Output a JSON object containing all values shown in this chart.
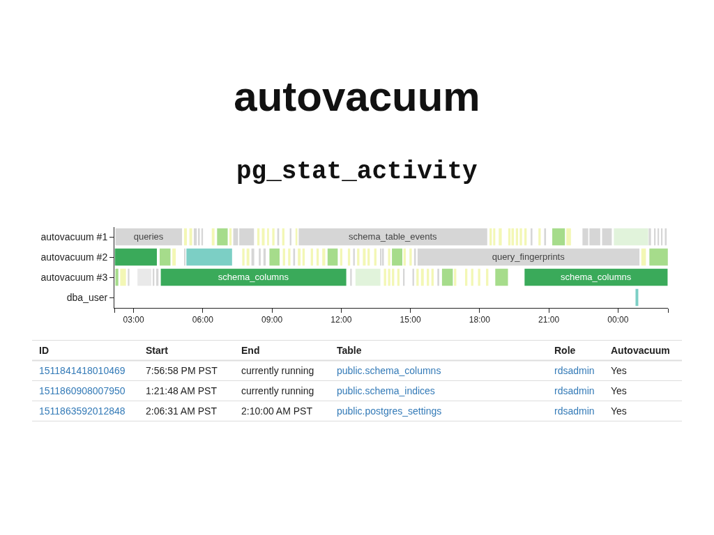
{
  "chart_data": {
    "type": "bar",
    "orientation": "horizontal",
    "title": "autovacuum",
    "subtitle": "pg_stat_activity",
    "categories": [
      "autovacuum #1",
      "autovacuum #2",
      "autovacuum #3",
      "dba_user"
    ],
    "xlim": [
      2.1667,
      26.1667
    ],
    "xticks": [
      {
        "value": 2.1667,
        "label": null
      },
      {
        "value": 3,
        "label": "03:00"
      },
      {
        "value": 6,
        "label": "06:00"
      },
      {
        "value": 9,
        "label": "09:00"
      },
      {
        "value": 12,
        "label": "12:00"
      },
      {
        "value": 15,
        "label": "15:00"
      },
      {
        "value": 18,
        "label": "18:00"
      },
      {
        "value": 21,
        "label": "21:00"
      },
      {
        "value": 24,
        "label": "00:00"
      },
      {
        "value": 26.1667,
        "label": null
      }
    ],
    "series": [
      {
        "color": "#d6d6d6",
        "base": [
          2.21,
          null,
          null,
          null
        ],
        "values": [
          2.89,
          null,
          null,
          null
        ],
        "value_labels": [
          "queries",
          null,
          null,
          null
        ]
      },
      {
        "color": "#f3f7b5",
        "base": [
          5.19,
          null,
          null,
          null
        ],
        "values": [
          0.12,
          null,
          null,
          null
        ]
      },
      {
        "color": "#f3f7b5",
        "base": [
          5.42,
          null,
          null,
          null
        ],
        "values": [
          0.12,
          null,
          null,
          null
        ]
      },
      {
        "color": "#d6d6d6",
        "base": [
          5.61,
          null,
          null,
          null
        ],
        "values": [
          0.13,
          null,
          null,
          null
        ]
      },
      {
        "color": "#d6d6d6",
        "base": [
          5.81,
          null,
          null,
          null
        ],
        "values": [
          0.06,
          null,
          null,
          null
        ]
      },
      {
        "color": "#d6d6d6",
        "base": [
          5.94,
          null,
          null,
          null
        ],
        "values": [
          0.07,
          null,
          null,
          null
        ]
      },
      {
        "color": "#f3f7b5",
        "base": [
          6.39,
          null,
          null,
          null
        ],
        "values": [
          0.12,
          null,
          null,
          null
        ]
      },
      {
        "color": "#a6dc8b",
        "base": [
          6.62,
          null,
          null,
          null
        ],
        "values": [
          0.46,
          null,
          null,
          null
        ]
      },
      {
        "color": "#f3f7b5",
        "base": [
          7.15,
          null,
          null,
          null
        ],
        "values": [
          0.1,
          null,
          null,
          null
        ]
      },
      {
        "color": "#d6d6d6",
        "base": [
          7.32,
          null,
          null,
          null
        ],
        "values": [
          0.21,
          null,
          null,
          null
        ]
      },
      {
        "color": "#d6d6d6",
        "base": [
          7.58,
          null,
          null,
          null
        ],
        "values": [
          0.64,
          null,
          null,
          null
        ]
      },
      {
        "color": "#f3f7b5",
        "base": [
          8.36,
          null,
          null,
          null
        ],
        "values": [
          0.1,
          null,
          null,
          null
        ]
      },
      {
        "color": "#f3f7b5",
        "base": [
          8.56,
          null,
          null,
          null
        ],
        "values": [
          0.12,
          null,
          null,
          null
        ]
      },
      {
        "color": "#f3f7b5",
        "base": [
          8.79,
          null,
          null,
          null
        ],
        "values": [
          0.08,
          null,
          null,
          null
        ]
      },
      {
        "color": "#f3f7b5",
        "base": [
          9.01,
          null,
          null,
          null
        ],
        "values": [
          0.1,
          null,
          null,
          null
        ]
      },
      {
        "color": "#d6d6d6",
        "base": [
          9.23,
          null,
          null,
          null
        ],
        "values": [
          0.08,
          null,
          null,
          null
        ]
      },
      {
        "color": "#f3f7b5",
        "base": [
          9.44,
          null,
          null,
          null
        ],
        "values": [
          0.1,
          null,
          null,
          null
        ]
      },
      {
        "color": "#d6d6d6",
        "base": [
          9.77,
          null,
          null,
          null
        ],
        "values": [
          0.07,
          null,
          null,
          null
        ]
      },
      {
        "color": "#f3f7b5",
        "base": [
          10.02,
          null,
          null,
          null
        ],
        "values": [
          0.08,
          null,
          null,
          null
        ]
      },
      {
        "color": "#d6d6d6",
        "base": [
          10.16,
          null,
          null,
          null
        ],
        "values": [
          8.17,
          null,
          null,
          null
        ],
        "value_labels": [
          "schema_table_events",
          null,
          null,
          null
        ]
      },
      {
        "color": "#f3f7b5",
        "base": [
          18.43,
          null,
          null,
          null
        ],
        "values": [
          0.1,
          null,
          null,
          null
        ]
      },
      {
        "color": "#f3f7b5",
        "base": [
          18.59,
          null,
          null,
          null
        ],
        "values": [
          0.09,
          null,
          null,
          null
        ]
      },
      {
        "color": "#f3f7b5",
        "base": [
          18.83,
          null,
          null,
          null
        ],
        "values": [
          0.13,
          null,
          null,
          null
        ]
      },
      {
        "color": "#f3f7b5",
        "base": [
          19.24,
          null,
          null,
          null
        ],
        "values": [
          0.1,
          null,
          null,
          null
        ]
      },
      {
        "color": "#f3f7b5",
        "base": [
          19.38,
          null,
          null,
          null
        ],
        "values": [
          0.11,
          null,
          null,
          null
        ]
      },
      {
        "color": "#f3f7b5",
        "base": [
          19.57,
          null,
          null,
          null
        ],
        "values": [
          0.1,
          null,
          null,
          null
        ]
      },
      {
        "color": "#f3f7b5",
        "base": [
          19.74,
          null,
          null,
          null
        ],
        "values": [
          0.1,
          null,
          null,
          null
        ]
      },
      {
        "color": "#f3f7b5",
        "base": [
          19.94,
          null,
          null,
          null
        ],
        "values": [
          0.1,
          null,
          null,
          null
        ]
      },
      {
        "color": "#d6d6d6",
        "base": [
          20.24,
          null,
          null,
          null
        ],
        "values": [
          0.05,
          null,
          null,
          null
        ]
      },
      {
        "color": "#f3f7b5",
        "base": [
          20.55,
          null,
          null,
          null
        ],
        "values": [
          0.1,
          null,
          null,
          null
        ]
      },
      {
        "color": "#d6d6d6",
        "base": [
          20.8,
          null,
          null,
          null
        ],
        "values": [
          0.08,
          null,
          null,
          null
        ]
      },
      {
        "color": "#a6dc8b",
        "base": [
          21.15,
          null,
          null,
          null
        ],
        "values": [
          0.55,
          null,
          null,
          null
        ]
      },
      {
        "color": "#f3f7b5",
        "base": [
          21.76,
          null,
          null,
          null
        ],
        "values": [
          0.2,
          null,
          null,
          null
        ]
      },
      {
        "color": "#d6d6d6",
        "base": [
          22.46,
          null,
          null,
          null
        ],
        "values": [
          0.25,
          null,
          null,
          null
        ]
      },
      {
        "color": "#d6d6d6",
        "base": [
          22.76,
          null,
          null,
          null
        ],
        "values": [
          0.47,
          null,
          null,
          null
        ]
      },
      {
        "color": "#d6d6d6",
        "base": [
          23.31,
          null,
          null,
          null
        ],
        "values": [
          0.42,
          null,
          null,
          null
        ]
      },
      {
        "color": "#e1f3db",
        "base": [
          23.82,
          null,
          null,
          null
        ],
        "values": [
          1.49,
          null,
          null,
          null
        ]
      },
      {
        "color": "#d6d6d6",
        "base": [
          25.33,
          null,
          null,
          null
        ],
        "values": [
          0.1,
          null,
          null,
          null
        ]
      },
      {
        "color": "#d6d6d6",
        "base": [
          25.58,
          null,
          null,
          null
        ],
        "values": [
          0.05,
          null,
          null,
          null
        ]
      },
      {
        "color": "#d6d6d6",
        "base": [
          25.73,
          null,
          null,
          null
        ],
        "values": [
          0.05,
          null,
          null,
          null
        ]
      },
      {
        "color": "#d6d6d6",
        "base": [
          25.88,
          null,
          null,
          null
        ],
        "values": [
          0.05,
          null,
          null,
          null
        ]
      },
      {
        "color": "#d6d6d6",
        "base": [
          26.03,
          null,
          null,
          null
        ],
        "values": [
          0.08,
          null,
          null,
          null
        ]
      },
      {
        "color": "#3aaa5a",
        "base": [
          null,
          2.19,
          null,
          null
        ],
        "values": [
          null,
          1.82,
          null,
          null
        ]
      },
      {
        "color": "#a6dc8b",
        "base": [
          null,
          4.13,
          null,
          null
        ],
        "values": [
          null,
          0.47,
          null,
          null
        ]
      },
      {
        "color": "#f3f7b5",
        "base": [
          null,
          4.68,
          null,
          null
        ],
        "values": [
          null,
          0.15,
          null,
          null
        ]
      },
      {
        "color": "#d6d6d6",
        "base": [
          null,
          5.21,
          null,
          null
        ],
        "values": [
          null,
          0.04,
          null,
          null
        ]
      },
      {
        "color": "#7ccfc5",
        "base": [
          null,
          5.29,
          null,
          null
        ],
        "values": [
          null,
          1.98,
          null,
          null
        ]
      },
      {
        "color": "#f3f7b5",
        "base": [
          null,
          7.71,
          null,
          null
        ],
        "values": [
          null,
          0.1,
          null,
          null
        ]
      },
      {
        "color": "#f3f7b5",
        "base": [
          null,
          7.9,
          null,
          null
        ],
        "values": [
          null,
          0.12,
          null,
          null
        ]
      },
      {
        "color": "#d6d6d6",
        "base": [
          null,
          8.11,
          null,
          null
        ],
        "values": [
          null,
          0.12,
          null,
          null
        ]
      },
      {
        "color": "#d6d6d6",
        "base": [
          null,
          8.43,
          null,
          null
        ],
        "values": [
          null,
          0.08,
          null,
          null
        ]
      },
      {
        "color": "#d6d6d6",
        "base": [
          null,
          8.63,
          null,
          null
        ],
        "values": [
          null,
          0.1,
          null,
          null
        ]
      },
      {
        "color": "#a6dc8b",
        "base": [
          null,
          8.89,
          null,
          null
        ],
        "values": [
          null,
          0.44,
          null,
          null
        ]
      },
      {
        "color": "#f3f7b5",
        "base": [
          null,
          9.47,
          null,
          null
        ],
        "values": [
          null,
          0.1,
          null,
          null
        ]
      },
      {
        "color": "#f3f7b5",
        "base": [
          null,
          9.7,
          null,
          null
        ],
        "values": [
          null,
          0.1,
          null,
          null
        ]
      },
      {
        "color": "#d6d6d6",
        "base": [
          null,
          9.92,
          null,
          null
        ],
        "values": [
          null,
          0.08,
          null,
          null
        ]
      },
      {
        "color": "#f3f7b5",
        "base": [
          null,
          10.12,
          null,
          null
        ],
        "values": [
          null,
          0.12,
          null,
          null
        ]
      },
      {
        "color": "#f3f7b5",
        "base": [
          null,
          10.32,
          null,
          null
        ],
        "values": [
          null,
          0.1,
          null,
          null
        ]
      },
      {
        "color": "#f3f7b5",
        "base": [
          null,
          10.68,
          null,
          null
        ],
        "values": [
          null,
          0.1,
          null,
          null
        ]
      },
      {
        "color": "#f3f7b5",
        "base": [
          null,
          10.93,
          null,
          null
        ],
        "values": [
          null,
          0.1,
          null,
          null
        ]
      },
      {
        "color": "#f3f7b5",
        "base": [
          null,
          11.18,
          null,
          null
        ],
        "values": [
          null,
          0.13,
          null,
          null
        ]
      },
      {
        "color": "#a6dc8b",
        "base": [
          null,
          11.41,
          null,
          null
        ],
        "values": [
          null,
          0.44,
          null,
          null
        ]
      },
      {
        "color": "#f3f7b5",
        "base": [
          null,
          11.95,
          null,
          null
        ],
        "values": [
          null,
          0.1,
          null,
          null
        ]
      },
      {
        "color": "#f3f7b5",
        "base": [
          null,
          12.29,
          null,
          null
        ],
        "values": [
          null,
          0.1,
          null,
          null
        ]
      },
      {
        "color": "#d6d6d6",
        "base": [
          null,
          12.52,
          null,
          null
        ],
        "values": [
          null,
          0.07,
          null,
          null
        ]
      },
      {
        "color": "#f3f7b5",
        "base": [
          null,
          12.69,
          null,
          null
        ],
        "values": [
          null,
          0.1,
          null,
          null
        ]
      },
      {
        "color": "#f3f7b5",
        "base": [
          null,
          12.94,
          null,
          null
        ],
        "values": [
          null,
          0.12,
          null,
          null
        ]
      },
      {
        "color": "#f3f7b5",
        "base": [
          null,
          13.14,
          null,
          null
        ],
        "values": [
          null,
          0.1,
          null,
          null
        ]
      },
      {
        "color": "#f3f7b5",
        "base": [
          null,
          13.43,
          null,
          null
        ],
        "values": [
          null,
          0.1,
          null,
          null
        ]
      },
      {
        "color": "#d6d6d6",
        "base": [
          null,
          13.7,
          null,
          null
        ],
        "values": [
          null,
          0.05,
          null,
          null
        ]
      },
      {
        "color": "#d6d6d6",
        "base": [
          null,
          13.8,
          null,
          null
        ],
        "values": [
          null,
          0.05,
          null,
          null
        ]
      },
      {
        "color": "#f3f7b5",
        "base": [
          null,
          14.03,
          null,
          null
        ],
        "values": [
          null,
          0.1,
          null,
          null
        ]
      },
      {
        "color": "#a6dc8b",
        "base": [
          null,
          14.2,
          null,
          null
        ],
        "values": [
          null,
          0.45,
          null,
          null
        ]
      },
      {
        "color": "#f3f7b5",
        "base": [
          null,
          14.7,
          null,
          null
        ],
        "values": [
          null,
          0.1,
          null,
          null
        ]
      },
      {
        "color": "#f3f7b5",
        "base": [
          null,
          14.96,
          null,
          null
        ],
        "values": [
          null,
          0.1,
          null,
          null
        ]
      },
      {
        "color": "#d6d6d6",
        "base": [
          null,
          15.16,
          null,
          null
        ],
        "values": [
          null,
          0.08,
          null,
          null
        ]
      },
      {
        "color": "#d6d6d6",
        "base": [
          null,
          15.31,
          null,
          null
        ],
        "values": [
          null,
          9.62,
          null,
          null
        ],
        "value_labels": [
          null,
          "query_fingerprints",
          null,
          null
        ]
      },
      {
        "color": "#f3f7b5",
        "base": [
          null,
          25.01,
          null,
          null
        ],
        "values": [
          null,
          0.2,
          null,
          null
        ]
      },
      {
        "color": "#a6dc8b",
        "base": [
          null,
          25.36,
          null,
          null
        ],
        "values": [
          null,
          0.8,
          null,
          null
        ]
      },
      {
        "color": "#a6dc8b",
        "base": [
          null,
          null,
          2.21,
          null
        ],
        "values": [
          null,
          null,
          0.13,
          null
        ]
      },
      {
        "color": "#f3f7b5",
        "base": [
          null,
          null,
          2.42,
          null
        ],
        "values": [
          null,
          null,
          0.25,
          null
        ]
      },
      {
        "color": "#d6d6d6",
        "base": [
          null,
          null,
          2.75,
          null
        ],
        "values": [
          null,
          null,
          0.07,
          null
        ]
      },
      {
        "color": "#e9e9e9",
        "base": [
          null,
          null,
          3.17,
          null
        ],
        "values": [
          null,
          null,
          0.6,
          null
        ]
      },
      {
        "color": "#d6d6d6",
        "base": [
          null,
          null,
          3.83,
          null
        ],
        "values": [
          null,
          null,
          0.07,
          null
        ]
      },
      {
        "color": "#d6d6d6",
        "base": [
          null,
          null,
          3.98,
          null
        ],
        "values": [
          null,
          null,
          0.1,
          null
        ]
      },
      {
        "color": "#3aaa5a",
        "base": [
          null,
          null,
          4.18,
          null
        ],
        "values": [
          null,
          null,
          8.04,
          null
        ],
        "value_labels": [
          null,
          null,
          "schema_columns",
          null
        ]
      },
      {
        "color": "#d6d6d6",
        "base": [
          null,
          null,
          12.39,
          null
        ],
        "values": [
          null,
          null,
          0.07,
          null
        ]
      },
      {
        "color": "#e1f3db",
        "base": [
          null,
          null,
          12.62,
          null
        ],
        "values": [
          null,
          null,
          1.08,
          null
        ]
      },
      {
        "color": "#f3f7b5",
        "base": [
          null,
          null,
          13.85,
          null
        ],
        "values": [
          null,
          null,
          0.1,
          null
        ]
      },
      {
        "color": "#f3f7b5",
        "base": [
          null,
          null,
          14.03,
          null
        ],
        "values": [
          null,
          null,
          0.1,
          null
        ]
      },
      {
        "color": "#f3f7b5",
        "base": [
          null,
          null,
          14.2,
          null
        ],
        "values": [
          null,
          null,
          0.1,
          null
        ]
      },
      {
        "color": "#f3f7b5",
        "base": [
          null,
          null,
          14.43,
          null
        ],
        "values": [
          null,
          null,
          0.1,
          null
        ]
      },
      {
        "color": "#d6d6d6",
        "base": [
          null,
          null,
          14.7,
          null
        ],
        "values": [
          null,
          null,
          0.05,
          null
        ]
      },
      {
        "color": "#d6d6d6",
        "base": [
          null,
          null,
          15.09,
          null
        ],
        "values": [
          null,
          null,
          0.07,
          null
        ]
      },
      {
        "color": "#f3f7b5",
        "base": [
          null,
          null,
          15.26,
          null
        ],
        "values": [
          null,
          null,
          0.1,
          null
        ]
      },
      {
        "color": "#f3f7b5",
        "base": [
          null,
          null,
          15.46,
          null
        ],
        "values": [
          null,
          null,
          0.12,
          null
        ]
      },
      {
        "color": "#f3f7b5",
        "base": [
          null,
          null,
          15.71,
          null
        ],
        "values": [
          null,
          null,
          0.1,
          null
        ]
      },
      {
        "color": "#f3f7b5",
        "base": [
          null,
          null,
          15.91,
          null
        ],
        "values": [
          null,
          null,
          0.1,
          null
        ]
      },
      {
        "color": "#d6d6d6",
        "base": [
          null,
          null,
          16.17,
          null
        ],
        "values": [
          null,
          null,
          0.08,
          null
        ]
      },
      {
        "color": "#a6dc8b",
        "base": [
          null,
          null,
          16.37,
          null
        ],
        "values": [
          null,
          null,
          0.47,
          null
        ]
      },
      {
        "color": "#f3f7b5",
        "base": [
          null,
          null,
          16.89,
          null
        ],
        "values": [
          null,
          null,
          0.1,
          null
        ]
      },
      {
        "color": "#f3f7b5",
        "base": [
          null,
          null,
          17.37,
          null
        ],
        "values": [
          null,
          null,
          0.1,
          null
        ]
      },
      {
        "color": "#f3f7b5",
        "base": [
          null,
          null,
          17.63,
          null
        ],
        "values": [
          null,
          null,
          0.1,
          null
        ]
      },
      {
        "color": "#f3f7b5",
        "base": [
          null,
          null,
          17.93,
          null
        ],
        "values": [
          null,
          null,
          0.1,
          null
        ]
      },
      {
        "color": "#f3f7b5",
        "base": [
          null,
          null,
          18.28,
          null
        ],
        "values": [
          null,
          null,
          0.1,
          null
        ]
      },
      {
        "color": "#a6dc8b",
        "base": [
          null,
          null,
          18.68,
          null
        ],
        "values": [
          null,
          null,
          0.55,
          null
        ]
      },
      {
        "color": "#3aaa5a",
        "base": [
          null,
          null,
          19.95,
          null
        ],
        "values": [
          null,
          null,
          6.2,
          null
        ],
        "value_labels": [
          null,
          null,
          "schema_columns",
          null
        ]
      },
      {
        "color": "#7ccfc5",
        "base": [
          null,
          null,
          null,
          24.76
        ],
        "values": [
          null,
          null,
          null,
          0.12
        ]
      }
    ],
    "annotations": [
      "ID",
      "Start",
      "End",
      "Table",
      "Role",
      "Autovacuum",
      "1511841418010469",
      "7:56:58 PM PST",
      "currently running",
      "public.schema_columns",
      "rdsadmin",
      "Yes",
      "1511860908007950",
      "1:21:48 AM PST",
      "currently running",
      "public.schema_indices",
      "rdsadmin",
      "Yes",
      "1511863592012848",
      "2:06:31 AM PST",
      "2:10:00 AM PST",
      "public.postgres_settings",
      "rdsadmin",
      "Yes"
    ]
  }
}
